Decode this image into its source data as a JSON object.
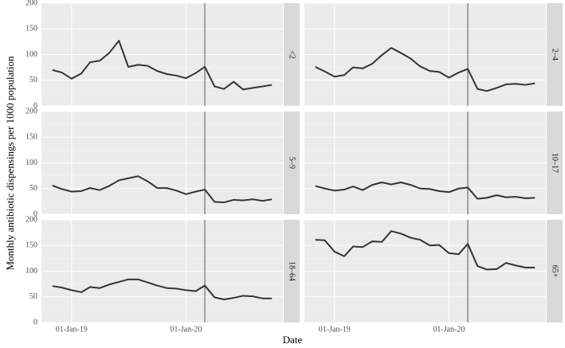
{
  "chart_data": {
    "type": "line",
    "xlabel": "Date",
    "ylabel": "Monthly antibiotic dispensings per 1000 population",
    "x": [
      "2018-11-01",
      "2018-12-01",
      "2019-01-01",
      "2019-02-01",
      "2019-03-01",
      "2019-04-01",
      "2019-05-01",
      "2019-06-01",
      "2019-07-01",
      "2019-08-01",
      "2019-09-01",
      "2019-10-01",
      "2019-11-01",
      "2019-12-01",
      "2020-01-01",
      "2020-02-01",
      "2020-03-01",
      "2020-04-01",
      "2020-05-01",
      "2020-06-01",
      "2020-07-01",
      "2020-08-01",
      "2020-09-01",
      "2020-10-01"
    ],
    "xlim": [
      "2018-09-27",
      "2020-11-05"
    ],
    "xticks": [
      {
        "value": "2019-01-01",
        "label": "01-Jan-19"
      },
      {
        "value": "2020-01-01",
        "label": "01-Jan-20"
      }
    ],
    "vline": "2020-03-01",
    "ylim": [
      0,
      200
    ],
    "yticks": [
      0,
      50,
      100,
      150,
      200
    ],
    "color": "#333333",
    "grid": true,
    "panels": [
      {
        "title": "<2",
        "values": [
          70,
          65,
          53,
          63,
          85,
          88,
          103,
          127,
          76,
          80,
          78,
          68,
          62,
          59,
          54,
          64,
          76,
          38,
          33,
          47,
          32,
          35,
          38,
          41
        ]
      },
      {
        "title": "2–4",
        "values": [
          76,
          67,
          57,
          60,
          75,
          73,
          82,
          99,
          113,
          103,
          92,
          77,
          68,
          66,
          55,
          65,
          72,
          33,
          29,
          35,
          42,
          43,
          41,
          44
        ]
      },
      {
        "title": "5–9",
        "values": [
          56,
          49,
          44,
          45,
          51,
          47,
          55,
          66,
          70,
          74,
          64,
          51,
          51,
          46,
          39,
          44,
          48,
          24,
          23,
          28,
          27,
          29,
          26,
          29
        ]
      },
      {
        "title": "10–17",
        "values": [
          55,
          50,
          46,
          48,
          54,
          47,
          57,
          62,
          58,
          62,
          57,
          50,
          49,
          45,
          43,
          50,
          52,
          30,
          32,
          37,
          33,
          34,
          31,
          32
        ]
      },
      {
        "title": "18–64",
        "values": [
          71,
          68,
          63,
          59,
          69,
          67,
          74,
          79,
          84,
          84,
          78,
          72,
          67,
          66,
          63,
          61,
          72,
          49,
          45,
          48,
          52,
          51,
          47,
          47
        ]
      },
      {
        "title": "65+",
        "values": [
          161,
          160,
          138,
          129,
          148,
          147,
          158,
          157,
          178,
          173,
          165,
          161,
          150,
          151,
          135,
          133,
          153,
          110,
          103,
          104,
          116,
          111,
          107,
          107
        ]
      }
    ]
  }
}
